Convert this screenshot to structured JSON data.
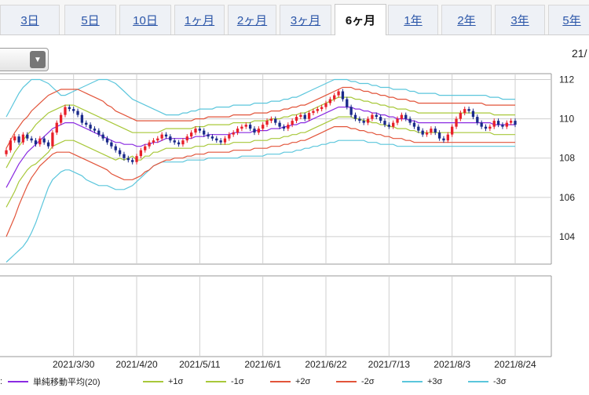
{
  "tabs": [
    {
      "label": "3日",
      "active": false
    },
    {
      "label": "5日",
      "active": false
    },
    {
      "label": "10日",
      "active": false
    },
    {
      "label": "1ヶ月",
      "active": false
    },
    {
      "label": "2ヶ月",
      "active": false
    },
    {
      "label": "3ヶ月",
      "active": false
    },
    {
      "label": "6ヶ月",
      "active": true
    },
    {
      "label": "1年",
      "active": false
    },
    {
      "label": "2年",
      "active": false
    },
    {
      "label": "3年",
      "active": false
    },
    {
      "label": "5年",
      "active": false
    }
  ],
  "header": {
    "date_label": "21/",
    "dropdown_arrow": "▼"
  },
  "legend": {
    "prefix": ":",
    "items": [
      {
        "label": "単純移動平均(20)",
        "color": "#8a2be2"
      },
      {
        "label": "+1σ",
        "color": "#a8c83a"
      },
      {
        "label": "-1σ",
        "color": "#a8c83a"
      },
      {
        "label": "+2σ",
        "color": "#e2543a"
      },
      {
        "label": "-2σ",
        "color": "#e2543a"
      },
      {
        "label": "+3σ",
        "color": "#5bc6dc"
      },
      {
        "label": "-3σ",
        "color": "#5bc6dc"
      }
    ]
  },
  "colors": {
    "up": "#e8202a",
    "down": "#1a2a8a",
    "grid": "#cfcfcf"
  },
  "chart_data": {
    "type": "line",
    "title": "",
    "xlabel": "",
    "ylabel": "",
    "ylim": [
      102.6,
      112.3
    ],
    "ytick_values": [
      104,
      106,
      108,
      110,
      112
    ],
    "x_ticks": [
      "2021/3/30",
      "2021/4/20",
      "2021/5/11",
      "2021/6/1",
      "2021/6/22",
      "2021/7/13",
      "2021/8/3",
      "2021/8/24"
    ],
    "x_tick_index": [
      16,
      31,
      46,
      61,
      76,
      91,
      106,
      121
    ],
    "close": [
      108.4,
      108.9,
      109.1,
      108.8,
      109.2,
      109.0,
      108.9,
      108.7,
      109.0,
      108.8,
      108.6,
      109.3,
      109.8,
      110.2,
      110.6,
      110.5,
      110.4,
      110.2,
      109.8,
      109.7,
      109.5,
      109.4,
      109.2,
      109.0,
      108.8,
      108.6,
      108.4,
      108.2,
      108.0,
      107.9,
      107.8,
      108.1,
      108.4,
      108.6,
      108.8,
      108.9,
      109.0,
      109.2,
      109.1,
      108.9,
      108.8,
      108.7,
      108.9,
      109.1,
      109.3,
      109.5,
      109.4,
      109.2,
      109.1,
      109.0,
      108.9,
      108.8,
      109.0,
      109.2,
      109.3,
      109.5,
      109.6,
      109.7,
      109.5,
      109.3,
      109.5,
      109.7,
      109.9,
      110.0,
      109.8,
      109.6,
      109.5,
      109.7,
      109.9,
      110.1,
      110.2,
      110.0,
      110.3,
      110.4,
      110.5,
      110.6,
      110.8,
      111.0,
      111.2,
      111.4,
      111.0,
      110.6,
      110.2,
      110.0,
      109.9,
      109.8,
      110.0,
      110.2,
      110.1,
      109.9,
      109.7,
      109.6,
      109.8,
      110.0,
      110.2,
      110.0,
      109.8,
      109.6,
      109.4,
      109.2,
      109.3,
      109.5,
      109.3,
      109.0,
      108.9,
      109.2,
      109.6,
      110.0,
      110.3,
      110.5,
      110.4,
      110.1,
      109.8,
      109.6,
      109.5,
      109.6,
      109.9,
      109.7,
      109.6,
      109.8,
      109.9,
      109.7
    ],
    "series": [
      {
        "name": "単純移動平均(20)",
        "values": [
          106.5,
          106.9,
          107.3,
          107.7,
          108.0,
          108.3,
          108.5,
          108.7,
          108.9,
          109.1,
          109.3,
          109.5,
          109.6,
          109.7,
          109.8,
          109.8,
          109.8,
          109.7,
          109.6,
          109.5,
          109.4,
          109.3,
          109.2,
          109.1,
          109.0,
          108.9,
          108.8,
          108.8,
          108.7,
          108.7,
          108.7,
          108.6,
          108.6,
          108.7,
          108.7,
          108.8,
          108.8,
          108.9,
          109.0,
          109.0,
          109.0,
          109.0,
          109.0,
          109.0,
          109.0,
          109.1,
          109.1,
          109.1,
          109.2,
          109.2,
          109.2,
          109.2,
          109.2,
          109.2,
          109.3,
          109.3,
          109.3,
          109.3,
          109.3,
          109.4,
          109.4,
          109.4,
          109.4,
          109.5,
          109.5,
          109.5,
          109.6,
          109.6,
          109.7,
          109.7,
          109.8,
          109.8,
          109.9,
          110.0,
          110.1,
          110.2,
          110.3,
          110.4,
          110.5,
          110.6,
          110.6,
          110.6,
          110.6,
          110.5,
          110.5,
          110.4,
          110.4,
          110.3,
          110.3,
          110.2,
          110.2,
          110.1,
          110.1,
          110.0,
          110.0,
          110.0,
          109.9,
          109.9,
          109.8,
          109.8,
          109.8,
          109.8,
          109.8,
          109.8,
          109.8,
          109.8,
          109.8,
          109.8,
          109.8,
          109.8,
          109.8,
          109.8,
          109.8,
          109.8,
          109.8,
          109.8,
          109.7,
          109.7,
          109.7,
          109.7,
          109.7,
          109.7
        ]
      },
      {
        "name": "+1σ",
        "values": [
          107.5,
          107.9,
          108.3,
          108.6,
          108.9,
          109.2,
          109.4,
          109.7,
          109.9,
          110.1,
          110.3,
          110.4,
          110.5,
          110.6,
          110.7,
          110.7,
          110.7,
          110.6,
          110.5,
          110.4,
          110.3,
          110.2,
          110.1,
          110.0,
          109.9,
          109.8,
          109.7,
          109.6,
          109.5,
          109.4,
          109.3,
          109.3,
          109.3,
          109.3,
          109.3,
          109.3,
          109.3,
          109.4,
          109.5,
          109.5,
          109.5,
          109.5,
          109.5,
          109.5,
          109.5,
          109.6,
          109.6,
          109.6,
          109.7,
          109.7,
          109.7,
          109.7,
          109.7,
          109.7,
          109.8,
          109.8,
          109.8,
          109.8,
          109.8,
          109.9,
          109.9,
          109.9,
          109.9,
          110.0,
          110.0,
          110.0,
          110.1,
          110.1,
          110.2,
          110.2,
          110.3,
          110.3,
          110.4,
          110.5,
          110.6,
          110.7,
          110.8,
          110.9,
          111.0,
          111.1,
          111.1,
          111.1,
          111.1,
          111.0,
          111.0,
          110.9,
          110.9,
          110.8,
          110.8,
          110.7,
          110.7,
          110.6,
          110.6,
          110.5,
          110.5,
          110.5,
          110.4,
          110.4,
          110.3,
          110.3,
          110.3,
          110.3,
          110.3,
          110.3,
          110.3,
          110.3,
          110.3,
          110.3,
          110.3,
          110.3,
          110.3,
          110.3,
          110.3,
          110.3,
          110.3,
          110.3,
          110.2,
          110.2,
          110.2,
          110.2,
          110.2,
          110.2
        ]
      },
      {
        "name": "-1σ",
        "values": [
          105.5,
          105.9,
          106.3,
          106.8,
          107.1,
          107.4,
          107.6,
          107.7,
          107.9,
          108.1,
          108.3,
          108.6,
          108.7,
          108.8,
          108.9,
          108.9,
          108.9,
          108.8,
          108.7,
          108.6,
          108.5,
          108.4,
          108.3,
          108.2,
          108.1,
          108.0,
          107.9,
          108.0,
          107.9,
          108.0,
          108.1,
          107.9,
          107.9,
          108.1,
          108.1,
          108.3,
          108.3,
          108.4,
          108.5,
          108.5,
          108.5,
          108.5,
          108.5,
          108.5,
          108.5,
          108.6,
          108.6,
          108.6,
          108.7,
          108.7,
          108.7,
          108.7,
          108.7,
          108.7,
          108.8,
          108.8,
          108.8,
          108.8,
          108.8,
          108.9,
          108.9,
          108.9,
          108.9,
          109.0,
          109.0,
          109.0,
          109.1,
          109.1,
          109.2,
          109.2,
          109.3,
          109.3,
          109.4,
          109.5,
          109.6,
          109.7,
          109.8,
          109.9,
          110.0,
          110.1,
          110.1,
          110.1,
          110.1,
          110.0,
          110.0,
          109.9,
          109.9,
          109.8,
          109.8,
          109.7,
          109.7,
          109.6,
          109.6,
          109.5,
          109.5,
          109.5,
          109.4,
          109.4,
          109.3,
          109.3,
          109.3,
          109.3,
          109.3,
          109.3,
          109.3,
          109.3,
          109.3,
          109.3,
          109.3,
          109.3,
          109.3,
          109.3,
          109.3,
          109.3,
          109.3,
          109.3,
          109.2,
          109.2,
          109.2,
          109.2,
          109.2,
          109.2
        ]
      },
      {
        "name": "+2σ",
        "values": [
          108.5,
          108.9,
          109.3,
          109.6,
          109.9,
          110.1,
          110.4,
          110.6,
          110.8,
          111.0,
          111.2,
          111.3,
          111.4,
          111.5,
          111.5,
          111.5,
          111.5,
          111.5,
          111.4,
          111.3,
          111.2,
          111.1,
          111.0,
          110.9,
          110.7,
          110.6,
          110.4,
          110.3,
          110.2,
          110.1,
          110.0,
          109.9,
          109.9,
          109.9,
          109.9,
          109.9,
          109.9,
          109.9,
          109.9,
          109.9,
          109.9,
          109.9,
          109.9,
          109.9,
          109.9,
          110.0,
          110.0,
          110.0,
          110.1,
          110.1,
          110.1,
          110.1,
          110.1,
          110.1,
          110.2,
          110.2,
          110.2,
          110.2,
          110.2,
          110.3,
          110.3,
          110.3,
          110.3,
          110.4,
          110.4,
          110.4,
          110.5,
          110.5,
          110.6,
          110.6,
          110.7,
          110.7,
          110.8,
          110.9,
          111.0,
          111.1,
          111.2,
          111.3,
          111.4,
          111.5,
          111.6,
          111.6,
          111.6,
          111.5,
          111.5,
          111.4,
          111.4,
          111.3,
          111.3,
          111.2,
          111.2,
          111.1,
          111.1,
          111.0,
          111.0,
          111.0,
          110.9,
          110.9,
          110.8,
          110.8,
          110.8,
          110.8,
          110.8,
          110.8,
          110.8,
          110.8,
          110.8,
          110.8,
          110.8,
          110.8,
          110.8,
          110.8,
          110.8,
          110.8,
          110.7,
          110.7,
          110.7,
          110.7,
          110.7,
          110.7,
          110.7,
          110.7
        ]
      },
      {
        "name": "-2σ",
        "values": [
          104.0,
          104.5,
          105.0,
          105.6,
          106.1,
          106.6,
          107.0,
          107.3,
          107.6,
          107.8,
          108.0,
          108.2,
          108.3,
          108.3,
          108.3,
          108.3,
          108.2,
          108.1,
          108.0,
          107.9,
          107.8,
          107.7,
          107.6,
          107.5,
          107.4,
          107.2,
          107.1,
          107.0,
          106.9,
          106.9,
          106.9,
          107.0,
          107.1,
          107.3,
          107.4,
          107.6,
          107.7,
          107.8,
          107.9,
          107.9,
          108.0,
          108.0,
          108.0,
          108.1,
          108.1,
          108.2,
          108.2,
          108.2,
          108.3,
          108.3,
          108.3,
          108.3,
          108.3,
          108.3,
          108.4,
          108.4,
          108.4,
          108.4,
          108.4,
          108.5,
          108.5,
          108.5,
          108.5,
          108.6,
          108.6,
          108.6,
          108.7,
          108.7,
          108.8,
          108.8,
          108.9,
          108.9,
          109.0,
          109.1,
          109.2,
          109.3,
          109.4,
          109.5,
          109.6,
          109.6,
          109.6,
          109.6,
          109.5,
          109.5,
          109.4,
          109.4,
          109.3,
          109.3,
          109.2,
          109.2,
          109.1,
          109.1,
          109.0,
          109.0,
          109.0,
          108.9,
          108.9,
          108.8,
          108.8,
          108.8,
          108.8,
          108.8,
          108.8,
          108.8,
          108.8,
          108.8,
          108.8,
          108.8,
          108.8,
          108.8,
          108.8,
          108.8,
          108.8,
          108.8,
          108.8,
          108.8,
          108.8,
          108.8,
          108.8,
          108.8,
          108.8,
          108.8
        ]
      },
      {
        "name": "+3σ",
        "values": [
          110.1,
          110.5,
          110.9,
          111.3,
          111.6,
          111.8,
          112.0,
          112.0,
          112.0,
          111.9,
          111.8,
          111.6,
          111.4,
          111.2,
          111.2,
          111.3,
          111.4,
          111.5,
          111.6,
          111.7,
          111.8,
          111.9,
          112.0,
          112.0,
          112.0,
          111.9,
          111.8,
          111.6,
          111.4,
          111.2,
          111.0,
          110.9,
          110.8,
          110.7,
          110.6,
          110.5,
          110.4,
          110.3,
          110.2,
          110.2,
          110.2,
          110.2,
          110.3,
          110.3,
          110.4,
          110.4,
          110.5,
          110.5,
          110.5,
          110.5,
          110.6,
          110.6,
          110.6,
          110.6,
          110.7,
          110.7,
          110.7,
          110.7,
          110.7,
          110.8,
          110.8,
          110.8,
          110.8,
          110.9,
          110.9,
          110.9,
          111.0,
          111.0,
          111.1,
          111.1,
          111.2,
          111.3,
          111.4,
          111.5,
          111.6,
          111.7,
          111.8,
          111.9,
          112.0,
          112.0,
          112.0,
          112.0,
          111.9,
          111.9,
          111.8,
          111.8,
          111.8,
          111.7,
          111.7,
          111.6,
          111.6,
          111.6,
          111.5,
          111.5,
          111.5,
          111.5,
          111.4,
          111.4,
          111.3,
          111.3,
          111.3,
          111.3,
          111.3,
          111.2,
          111.2,
          111.2,
          111.2,
          111.2,
          111.2,
          111.2,
          111.2,
          111.2,
          111.2,
          111.2,
          111.2,
          111.1,
          111.1,
          111.1,
          111.0,
          111.0,
          111.0,
          111.0
        ]
      },
      {
        "name": "-3σ",
        "values": [
          102.7,
          102.9,
          103.1,
          103.3,
          103.5,
          103.8,
          104.2,
          104.7,
          105.3,
          105.9,
          106.5,
          106.9,
          107.1,
          107.3,
          107.4,
          107.4,
          107.3,
          107.2,
          107.1,
          106.9,
          106.8,
          106.7,
          106.6,
          106.6,
          106.6,
          106.5,
          106.4,
          106.4,
          106.4,
          106.5,
          106.6,
          106.8,
          107.0,
          107.2,
          107.4,
          107.6,
          107.7,
          107.8,
          107.8,
          107.8,
          107.8,
          107.8,
          107.8,
          107.9,
          107.9,
          107.9,
          107.9,
          107.9,
          108.0,
          108.0,
          108.0,
          108.0,
          108.0,
          108.0,
          108.0,
          108.0,
          108.1,
          108.1,
          108.1,
          108.1,
          108.1,
          108.1,
          108.2,
          108.2,
          108.2,
          108.2,
          108.3,
          108.3,
          108.3,
          108.4,
          108.4,
          108.5,
          108.5,
          108.6,
          108.6,
          108.7,
          108.7,
          108.8,
          108.8,
          108.9,
          108.9,
          108.9,
          108.9,
          108.9,
          108.9,
          108.9,
          108.8,
          108.8,
          108.8,
          108.7,
          108.7,
          108.7,
          108.7,
          108.6,
          108.6,
          108.6,
          108.6,
          108.6,
          108.6,
          108.6,
          108.6,
          108.6,
          108.6,
          108.6,
          108.6,
          108.6,
          108.6,
          108.6,
          108.6,
          108.6,
          108.6,
          108.6,
          108.6,
          108.6,
          108.6,
          108.6,
          108.6,
          108.6,
          108.6,
          108.6,
          108.6,
          108.6
        ]
      }
    ]
  }
}
